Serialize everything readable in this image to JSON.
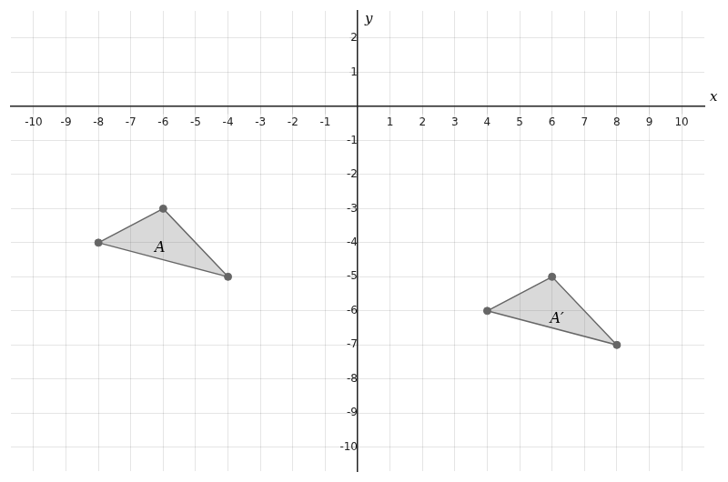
{
  "chart_data": {
    "type": "scatter",
    "xlabel": "x",
    "ylabel": "y",
    "xlim": [
      -10.7,
      10.7
    ],
    "ylim": [
      -10.7,
      2.8
    ],
    "xticks": [
      -10,
      -9,
      -8,
      -7,
      -6,
      -5,
      -4,
      -3,
      -2,
      -1,
      1,
      2,
      3,
      4,
      5,
      6,
      7,
      8,
      9,
      10
    ],
    "yticks": [
      -10,
      -9,
      -8,
      -7,
      -6,
      -5,
      -4,
      -3,
      -2,
      -1,
      1,
      2
    ],
    "grid": true,
    "series": [
      {
        "x": [
          -8,
          -6,
          -4
        ],
        "y": [
          -4,
          -3,
          -5
        ],
        "color": "#666666"
      },
      {
        "x": [
          4,
          6,
          8
        ],
        "y": [
          -6,
          -5,
          -7
        ],
        "color": "#666666"
      }
    ],
    "annotations": [
      {
        "text": "A",
        "x": -6.1,
        "y": -4.15
      },
      {
        "text": "A′",
        "x": 6.15,
        "y": -6.25
      }
    ]
  }
}
